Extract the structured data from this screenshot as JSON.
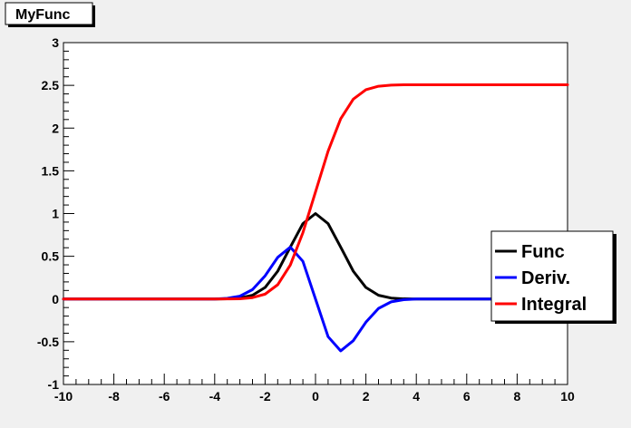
{
  "chart_data": {
    "type": "line",
    "title": "MyFunc",
    "xlabel": "",
    "ylabel": "",
    "xlim": [
      -10,
      10
    ],
    "ylim": [
      -1,
      3
    ],
    "x_ticks": [
      "-10",
      "-8",
      "-6",
      "-4",
      "-2",
      "0",
      "2",
      "4",
      "6",
      "8",
      "10"
    ],
    "y_ticks": [
      "-1",
      "-0.5",
      "0",
      "0.5",
      "1",
      "1.5",
      "2",
      "2.5",
      "3"
    ],
    "legend_position": "right",
    "series": [
      {
        "name": "Func",
        "color": "#000000",
        "x": [
          -10,
          -4,
          -3.5,
          -3,
          -2.5,
          -2,
          -1.5,
          -1,
          -0.5,
          0,
          0.5,
          1,
          1.5,
          2,
          2.5,
          3,
          3.5,
          4,
          10
        ],
        "y": [
          0,
          0,
          0.002,
          0.011,
          0.044,
          0.135,
          0.325,
          0.607,
          0.882,
          1.0,
          0.882,
          0.607,
          0.325,
          0.135,
          0.044,
          0.011,
          0.002,
          0,
          0
        ]
      },
      {
        "name": "Deriv.",
        "color": "#0000ff",
        "x": [
          -10,
          -4,
          -3.5,
          -3,
          -2.5,
          -2,
          -1.5,
          -1,
          -0.5,
          0,
          0.5,
          1,
          1.5,
          2,
          2.5,
          3,
          3.5,
          4,
          10
        ],
        "y": [
          0,
          0,
          0.008,
          0.033,
          0.11,
          0.271,
          0.487,
          0.607,
          0.441,
          0,
          -0.441,
          -0.607,
          -0.487,
          -0.271,
          -0.11,
          -0.033,
          -0.008,
          0,
          0
        ]
      },
      {
        "name": "Integral",
        "color": "#ff0000",
        "x": [
          -10,
          -4,
          -3.5,
          -3,
          -2.5,
          -2,
          -1.5,
          -1,
          -0.5,
          0,
          0.5,
          1,
          1.5,
          2,
          2.5,
          3,
          3.5,
          4,
          10
        ],
        "y": [
          0,
          0,
          0.001,
          0.003,
          0.016,
          0.057,
          0.167,
          0.397,
          0.776,
          1.253,
          1.73,
          2.109,
          2.339,
          2.449,
          2.49,
          2.503,
          2.506,
          2.507,
          2.507
        ]
      }
    ]
  }
}
